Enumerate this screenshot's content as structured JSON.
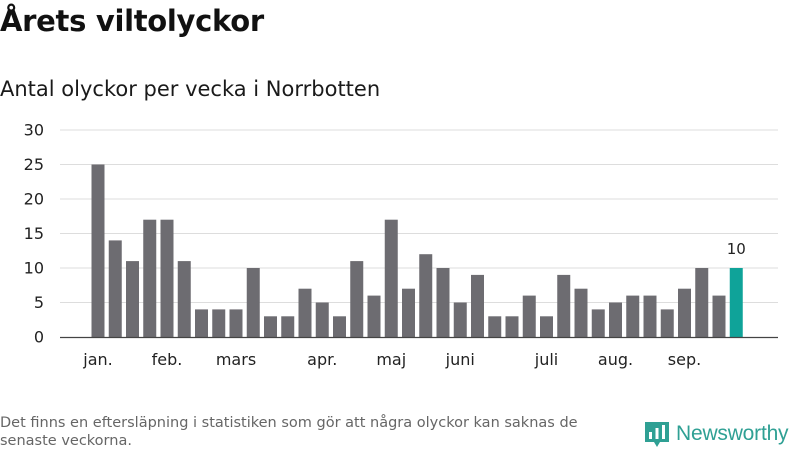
{
  "title": "Årets viltolyckor",
  "footnote": "Det finns en eftersläpning i statistiken som gör att några olyckor kan saknas de senaste veckorna.",
  "brand": {
    "name": "Newsworthy",
    "icon": "newsworthy-logo-icon",
    "color": "#2fa094"
  },
  "colors": {
    "bar": "#6d6c71",
    "highlight": "#0fa399",
    "grid": "#dddddd",
    "axis": "#444444"
  },
  "chart_data": {
    "type": "bar",
    "title": "Antal olyckor per vecka i Norrbotten",
    "xlabel": "",
    "ylabel": "",
    "ylim": [
      0,
      30
    ],
    "yticks": [
      0,
      5,
      10,
      15,
      20,
      25,
      30
    ],
    "grid": true,
    "values": [
      25,
      14,
      11,
      17,
      17,
      11,
      4,
      4,
      4,
      10,
      3,
      3,
      7,
      5,
      3,
      11,
      6,
      17,
      7,
      12,
      10,
      5,
      9,
      3,
      3,
      6,
      3,
      9,
      7,
      4,
      5,
      6,
      6,
      4,
      7,
      10,
      6,
      10
    ],
    "x_labels": [
      {
        "label": "jan.",
        "week": 1
      },
      {
        "label": "feb.",
        "week": 5
      },
      {
        "label": "mars",
        "week": 9
      },
      {
        "label": "apr.",
        "week": 14
      },
      {
        "label": "maj",
        "week": 18
      },
      {
        "label": "juni",
        "week": 22
      },
      {
        "label": "juli",
        "week": 27
      },
      {
        "label": "aug.",
        "week": 31
      },
      {
        "label": "sep.",
        "week": 35
      }
    ],
    "highlight_index": 37,
    "highlight_label": "10"
  }
}
